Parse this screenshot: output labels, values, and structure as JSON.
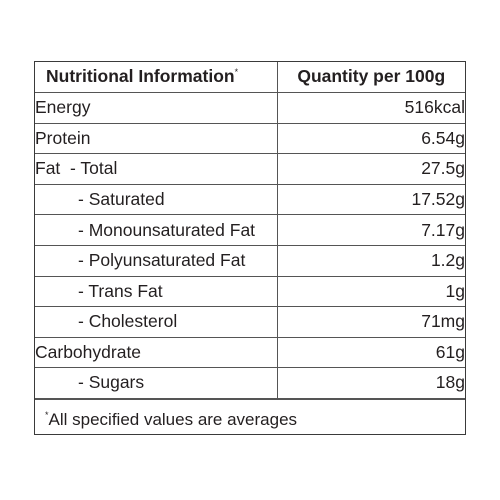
{
  "table": {
    "header": {
      "nutrient": "Nutritional Information",
      "nutrient_marker": "*",
      "quantity": "Quantity per 100g"
    },
    "rows": [
      {
        "name": "Energy",
        "value": "516kcal"
      },
      {
        "name": "Protein",
        "value": "6.54g"
      },
      {
        "name": "Fat  - Total",
        "value": "27.5g"
      },
      {
        "name": "- Saturated",
        "value": "17.52g"
      },
      {
        "name": "- Monounsaturated Fat",
        "value": "7.17g"
      },
      {
        "name": "- Polyunsaturated Fat",
        "value": "1.2g"
      },
      {
        "name": "- Trans Fat",
        "value": "1g"
      },
      {
        "name": "- Cholesterol",
        "value": "71mg"
      },
      {
        "name": "Carbohydrate",
        "value": "61g"
      },
      {
        "name": "- Sugars",
        "value": "18g"
      }
    ],
    "footnote": {
      "marker": "*",
      "text": "All specified values are averages"
    }
  }
}
